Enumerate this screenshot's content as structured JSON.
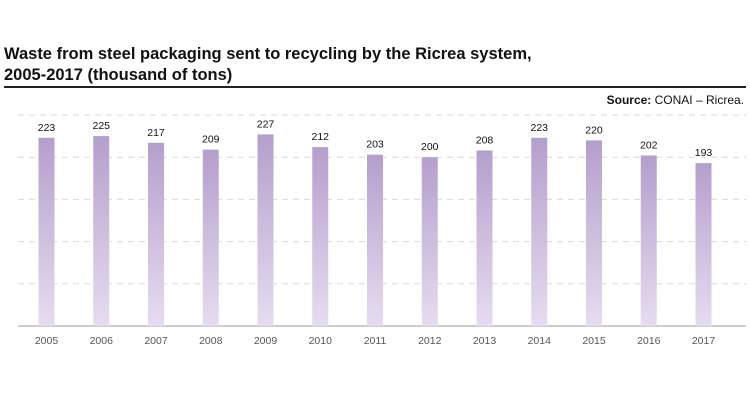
{
  "header": {
    "title_line1": "Waste from steel packaging sent to recycling by the Ricrea system,",
    "title_line2": "2005-2017 (thousand of tons)",
    "source_label": "Source:",
    "source_text": "CONAI – Ricrea."
  },
  "chart_data": {
    "type": "bar",
    "title": "Waste from steel packaging sent to recycling by the Ricrea system, 2005-2017 (thousand of tons)",
    "xlabel": "",
    "ylabel": "",
    "categories": [
      "2005",
      "2006",
      "2007",
      "2008",
      "2009",
      "2010",
      "2011",
      "2012",
      "2013",
      "2014",
      "2015",
      "2016",
      "2017"
    ],
    "values": [
      223,
      225,
      217,
      209,
      227,
      212,
      203,
      200,
      208,
      223,
      220,
      202,
      193
    ],
    "ylim": [
      0,
      250
    ],
    "grid": true,
    "legend": "none",
    "colors": {
      "bar_top": "#b49fcc",
      "bar_bottom": "#e6dcf0",
      "grid": "#d9d9d9",
      "baseline": "#9a9a9a"
    }
  }
}
